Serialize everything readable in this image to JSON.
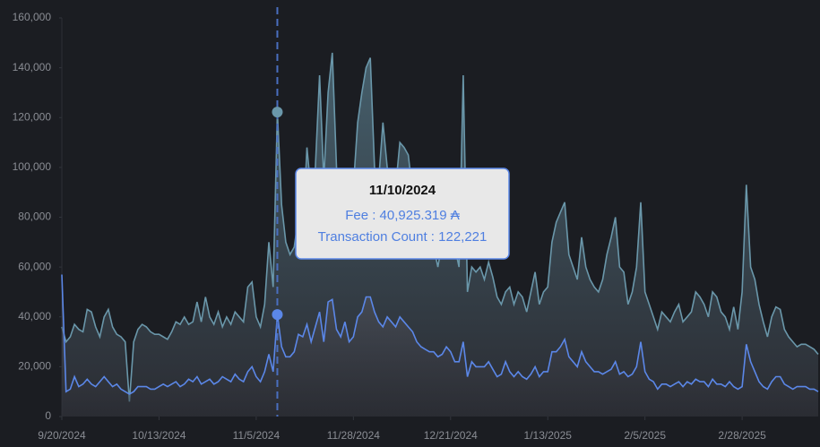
{
  "chart_data": {
    "type": "area",
    "x": [
      "9/20/2024",
      "9/21/2024",
      "9/22/2024",
      "9/23/2024",
      "9/24/2024",
      "9/25/2024",
      "9/26/2024",
      "9/27/2024",
      "9/28/2024",
      "9/29/2024",
      "9/30/2024",
      "10/1/2024",
      "10/2/2024",
      "10/3/2024",
      "10/4/2024",
      "10/5/2024",
      "10/6/2024",
      "10/7/2024",
      "10/8/2024",
      "10/9/2024",
      "10/10/2024",
      "10/11/2024",
      "10/12/2024",
      "10/13/2024",
      "10/14/2024",
      "10/15/2024",
      "10/16/2024",
      "10/17/2024",
      "10/18/2024",
      "10/19/2024",
      "10/20/2024",
      "10/21/2024",
      "10/22/2024",
      "10/23/2024",
      "10/24/2024",
      "10/25/2024",
      "10/26/2024",
      "10/27/2024",
      "10/28/2024",
      "10/29/2024",
      "10/30/2024",
      "10/31/2024",
      "11/1/2024",
      "11/2/2024",
      "11/3/2024",
      "11/4/2024",
      "11/5/2024",
      "11/6/2024",
      "11/7/2024",
      "11/8/2024",
      "11/9/2024",
      "11/10/2024",
      "11/11/2024",
      "11/12/2024",
      "11/13/2024",
      "11/14/2024",
      "11/15/2024",
      "11/16/2024",
      "11/17/2024",
      "11/18/2024",
      "11/19/2024",
      "11/20/2024",
      "11/21/2024",
      "11/22/2024",
      "11/23/2024",
      "11/24/2024",
      "11/25/2024",
      "11/26/2024",
      "11/27/2024",
      "11/28/2024",
      "11/29/2024",
      "11/30/2024",
      "12/1/2024",
      "12/2/2024",
      "12/3/2024",
      "12/4/2024",
      "12/5/2024",
      "12/6/2024",
      "12/7/2024",
      "12/8/2024",
      "12/9/2024",
      "12/10/2024",
      "12/11/2024",
      "12/12/2024",
      "12/13/2024",
      "12/14/2024",
      "12/15/2024",
      "12/16/2024",
      "12/17/2024",
      "12/18/2024",
      "12/19/2024",
      "12/20/2024",
      "12/21/2024",
      "12/22/2024",
      "12/23/2024",
      "12/24/2024",
      "12/25/2024",
      "12/26/2024",
      "12/27/2024",
      "12/28/2024",
      "12/29/2024",
      "12/30/2024",
      "12/31/2024",
      "1/1/2025",
      "1/2/2025",
      "1/3/2025",
      "1/4/2025",
      "1/5/2025",
      "1/6/2025",
      "1/7/2025",
      "1/8/2025",
      "1/9/2025",
      "1/10/2025",
      "1/11/2025",
      "1/12/2025",
      "1/13/2025",
      "1/14/2025",
      "1/15/2025",
      "1/16/2025",
      "1/17/2025",
      "1/18/2025",
      "1/19/2025",
      "1/20/2025",
      "1/21/2025",
      "1/22/2025",
      "1/23/2025",
      "1/24/2025",
      "1/25/2025",
      "1/26/2025",
      "1/27/2025",
      "1/28/2025",
      "1/29/2025",
      "1/30/2025",
      "1/31/2025",
      "2/1/2025",
      "2/2/2025",
      "2/3/2025",
      "2/4/2025",
      "2/5/2025",
      "2/6/2025",
      "2/7/2025",
      "2/8/2025",
      "2/9/2025",
      "2/10/2025",
      "2/11/2025",
      "2/12/2025",
      "2/13/2025",
      "2/14/2025",
      "2/15/2025",
      "2/16/2025",
      "2/17/2025",
      "2/18/2025",
      "2/19/2025",
      "2/20/2025",
      "2/21/2025",
      "2/22/2025",
      "2/23/2025",
      "2/24/2025",
      "2/25/2025",
      "2/26/2025",
      "2/27/2025",
      "2/28/2025",
      "3/1/2025",
      "3/2/2025",
      "3/3/2025",
      "3/4/2025",
      "3/5/2025",
      "3/6/2025",
      "3/7/2025",
      "3/8/2025",
      "3/9/2025",
      "3/10/2025",
      "3/11/2025",
      "3/12/2025",
      "3/13/2025",
      "3/14/2025",
      "3/15/2025",
      "3/16/2025",
      "3/17/2025",
      "3/18/2025"
    ],
    "series": [
      {
        "name": "Transaction Count",
        "color": "#6a97aa",
        "values": [
          36000,
          30000,
          32000,
          37000,
          35000,
          34000,
          43000,
          42000,
          36000,
          32000,
          40000,
          43000,
          36000,
          33000,
          32000,
          30000,
          6000,
          30000,
          35000,
          37000,
          36000,
          34000,
          33000,
          33000,
          32000,
          31000,
          34000,
          38000,
          37000,
          40000,
          37000,
          38000,
          46000,
          38000,
          48000,
          40000,
          37000,
          42000,
          36000,
          40000,
          37000,
          42000,
          40000,
          38000,
          52000,
          54000,
          40000,
          36000,
          45000,
          70000,
          52000,
          122221,
          85000,
          70000,
          65000,
          68000,
          80000,
          72000,
          108000,
          90000,
          100000,
          137000,
          95000,
          130000,
          146000,
          100000,
          90000,
          95000,
          88000,
          92000,
          118000,
          130000,
          140000,
          144000,
          100000,
          95000,
          118000,
          100000,
          95000,
          92000,
          110000,
          108000,
          105000,
          90000,
          88000,
          80000,
          75000,
          72000,
          68000,
          60000,
          70000,
          80000,
          85000,
          68000,
          60000,
          137000,
          50000,
          60000,
          58000,
          60000,
          55000,
          62000,
          56000,
          48000,
          45000,
          50000,
          52000,
          45000,
          50000,
          48000,
          42000,
          50000,
          58000,
          45000,
          50000,
          52000,
          70000,
          78000,
          82000,
          86000,
          65000,
          60000,
          55000,
          72000,
          60000,
          55000,
          52000,
          50000,
          55000,
          65000,
          72000,
          80000,
          60000,
          58000,
          45000,
          50000,
          60000,
          86000,
          50000,
          45000,
          40000,
          35000,
          42000,
          40000,
          38000,
          42000,
          45000,
          38000,
          40000,
          42000,
          50000,
          48000,
          45000,
          40000,
          50000,
          48000,
          42000,
          40000,
          35000,
          44000,
          35000,
          50000,
          93000,
          60000,
          55000,
          45000,
          38000,
          32000,
          40000,
          44000,
          43000,
          35000,
          32000,
          30000,
          28000,
          29000,
          29000,
          28000,
          27000,
          25000
        ]
      },
      {
        "name": "Fee",
        "color": "#5b87e8",
        "values": [
          57000,
          10000,
          11000,
          16000,
          12000,
          13000,
          15000,
          13000,
          12000,
          14000,
          16000,
          14000,
          12000,
          13000,
          11000,
          10000,
          9000,
          10000,
          12000,
          12000,
          12000,
          11000,
          11000,
          12000,
          13000,
          12000,
          13000,
          14000,
          12000,
          13000,
          15000,
          14000,
          16000,
          13000,
          14000,
          15000,
          13000,
          14000,
          16000,
          15000,
          14000,
          17000,
          15000,
          14000,
          18000,
          20000,
          16000,
          14000,
          18000,
          25000,
          18000,
          40925.319,
          28000,
          24000,
          24000,
          26000,
          33000,
          32000,
          37000,
          30000,
          36000,
          42000,
          30000,
          46000,
          47000,
          35000,
          32000,
          38000,
          30000,
          32000,
          40000,
          42000,
          48000,
          48000,
          42000,
          38000,
          36000,
          40000,
          38000,
          36000,
          40000,
          38000,
          36000,
          34000,
          30000,
          28000,
          27000,
          26000,
          26000,
          24000,
          25000,
          28000,
          26000,
          22000,
          22000,
          30000,
          16000,
          22000,
          20000,
          20000,
          20000,
          22000,
          19000,
          16000,
          17000,
          22000,
          18000,
          16000,
          18000,
          16000,
          15000,
          17000,
          20000,
          16000,
          18000,
          18000,
          26000,
          26000,
          28000,
          31000,
          24000,
          22000,
          20000,
          26000,
          22000,
          20000,
          18000,
          18000,
          17000,
          18000,
          19000,
          22000,
          17000,
          18000,
          16000,
          17000,
          20000,
          30000,
          18000,
          15000,
          14000,
          11000,
          13000,
          13000,
          12000,
          13000,
          14000,
          12000,
          14000,
          13000,
          15000,
          14000,
          14000,
          12000,
          15000,
          13000,
          13000,
          12000,
          14000,
          12000,
          11000,
          12000,
          29000,
          22000,
          18000,
          14000,
          12000,
          11000,
          14000,
          16000,
          16000,
          13000,
          12000,
          11000,
          12000,
          12000,
          12000,
          11000,
          11000,
          10000
        ]
      }
    ],
    "xticks": [
      "9/20/2024",
      "10/13/2024",
      "11/5/2024",
      "11/28/2024",
      "12/21/2024",
      "1/13/2025",
      "2/5/2025",
      "2/28/2025"
    ],
    "ylim": [
      0,
      160000
    ],
    "yticks": [
      0,
      {
        "value": 20000,
        "label": "20,000"
      },
      {
        "value": 40000,
        "label": "40,000"
      },
      {
        "value": 60000,
        "label": "60,000"
      },
      {
        "value": 80000,
        "label": "80,000"
      },
      {
        "value": 100000,
        "label": "100,000"
      },
      {
        "value": 120000,
        "label": "120,000"
      },
      {
        "value": 140000,
        "label": "140,000"
      },
      {
        "value": 160000,
        "label": "160,000"
      }
    ],
    "grid": false,
    "tooltip": {
      "date": "11/10/2024",
      "lines": [
        "Fee : 40,925.319 ₳",
        "Transaction Count : 122,221"
      ]
    }
  }
}
